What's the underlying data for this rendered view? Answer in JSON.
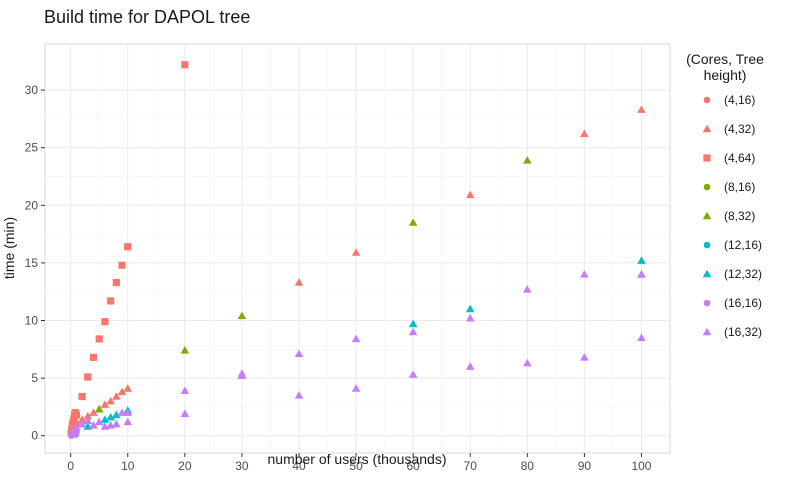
{
  "chart_data": {
    "type": "scatter",
    "title": "Build time for DAPOL tree",
    "xlabel": "number of users (thousands)",
    "ylabel": "time (min)",
    "xlim": [
      -4.5,
      105
    ],
    "ylim": [
      -1.5,
      34
    ],
    "x_ticks": [
      0,
      10,
      20,
      30,
      40,
      50,
      60,
      70,
      80,
      90,
      100
    ],
    "y_ticks": [
      0,
      5,
      10,
      15,
      20,
      25,
      30
    ],
    "grid": true,
    "legend": {
      "title_lines": [
        "(Cores, Tree",
        "height)"
      ],
      "placement": "right"
    },
    "series": [
      {
        "name": "(4,16)",
        "color": "#F8766D",
        "shape": "circle",
        "points": [
          [
            0.1,
            0.1
          ],
          [
            0.2,
            0.2
          ],
          [
            0.3,
            0.4
          ],
          [
            0.5,
            0.6
          ],
          [
            0.7,
            0.8
          ],
          [
            1.0,
            1.0
          ]
        ]
      },
      {
        "name": "(4,32)",
        "color": "#F8766D",
        "shape": "triangle",
        "points": [
          [
            0.2,
            0.5
          ],
          [
            0.5,
            0.8
          ],
          [
            1,
            1.0
          ],
          [
            2,
            1.4
          ],
          [
            3,
            1.7
          ],
          [
            4,
            2.0
          ],
          [
            5,
            2.3
          ],
          [
            6,
            2.7
          ],
          [
            7,
            3.0
          ],
          [
            8,
            3.4
          ],
          [
            9,
            3.8
          ],
          [
            10,
            4.1
          ],
          [
            40,
            13.3
          ],
          [
            50,
            15.9
          ],
          [
            70,
            20.9
          ],
          [
            90,
            26.2
          ],
          [
            100,
            28.3
          ]
        ]
      },
      {
        "name": "(4,64)",
        "color": "#F8766D",
        "shape": "square",
        "points": [
          [
            0.1,
            0.3
          ],
          [
            0.2,
            0.6
          ],
          [
            0.3,
            0.9
          ],
          [
            0.4,
            1.1
          ],
          [
            0.5,
            1.3
          ],
          [
            0.6,
            1.5
          ],
          [
            0.7,
            1.8
          ],
          [
            0.8,
            2.0
          ],
          [
            1.0,
            1.8
          ],
          [
            2,
            3.4
          ],
          [
            3,
            5.1
          ],
          [
            4,
            6.8
          ],
          [
            5,
            8.4
          ],
          [
            6,
            9.9
          ],
          [
            7,
            11.7
          ],
          [
            8,
            13.3
          ],
          [
            9,
            14.8
          ],
          [
            10,
            16.4
          ],
          [
            20,
            32.2
          ]
        ]
      },
      {
        "name": "(8,16)",
        "color": "#7CAE00",
        "shape": "circle",
        "points": [
          [
            0.1,
            0.1
          ],
          [
            0.3,
            0.2
          ],
          [
            0.6,
            0.3
          ]
        ]
      },
      {
        "name": "(8,32)",
        "color": "#7CAE00",
        "shape": "triangle",
        "points": [
          [
            5,
            2.3
          ],
          [
            20,
            7.4
          ],
          [
            30,
            10.4
          ],
          [
            60,
            18.5
          ],
          [
            80,
            23.9
          ],
          [
            100,
            14.0
          ]
        ]
      },
      {
        "name": "(12,16)",
        "color": "#00BFC4",
        "shape": "circle",
        "points": [
          [
            0.2,
            0.1
          ],
          [
            0.5,
            0.2
          ],
          [
            0.8,
            0.3
          ]
        ]
      },
      {
        "name": "(12,32)",
        "color": "#00BFC4",
        "shape": "triangle",
        "points": [
          [
            3,
            0.8
          ],
          [
            6,
            1.4
          ],
          [
            7,
            1.6
          ],
          [
            8,
            1.8
          ],
          [
            10,
            2.2
          ],
          [
            60,
            9.7
          ],
          [
            70,
            11.0
          ],
          [
            100,
            15.2
          ]
        ]
      },
      {
        "name": "(16,16)",
        "color": "#C77CFF",
        "shape": "circle",
        "points": [
          [
            0.1,
            0.0
          ],
          [
            0.2,
            0.1
          ],
          [
            0.3,
            0.2
          ],
          [
            0.5,
            0.2
          ],
          [
            0.7,
            0.3
          ],
          [
            0.9,
            0.1
          ],
          [
            1.0,
            0.3
          ]
        ]
      },
      {
        "name": "(16,32)",
        "color": "#C77CFF",
        "shape": "triangle",
        "points": [
          [
            0.5,
            0.4
          ],
          [
            1,
            0.7
          ],
          [
            2,
            1.0
          ],
          [
            3,
            1.3
          ],
          [
            4,
            0.9
          ],
          [
            5,
            1.2
          ],
          [
            6,
            0.8
          ],
          [
            7,
            0.9
          ],
          [
            8,
            1.0
          ],
          [
            9,
            2.0
          ],
          [
            10,
            1.2
          ],
          [
            10,
            2.0
          ],
          [
            20,
            1.9
          ],
          [
            20,
            3.9
          ],
          [
            30,
            5.2
          ],
          [
            30,
            5.4
          ],
          [
            40,
            3.5
          ],
          [
            40,
            7.1
          ],
          [
            50,
            4.1
          ],
          [
            50,
            8.4
          ],
          [
            60,
            5.3
          ],
          [
            60,
            9.0
          ],
          [
            70,
            6.0
          ],
          [
            70,
            10.2
          ],
          [
            80,
            6.3
          ],
          [
            80,
            12.7
          ],
          [
            90,
            6.8
          ],
          [
            90,
            14.0
          ],
          [
            100,
            8.5
          ],
          [
            100,
            14.0
          ]
        ]
      }
    ]
  }
}
